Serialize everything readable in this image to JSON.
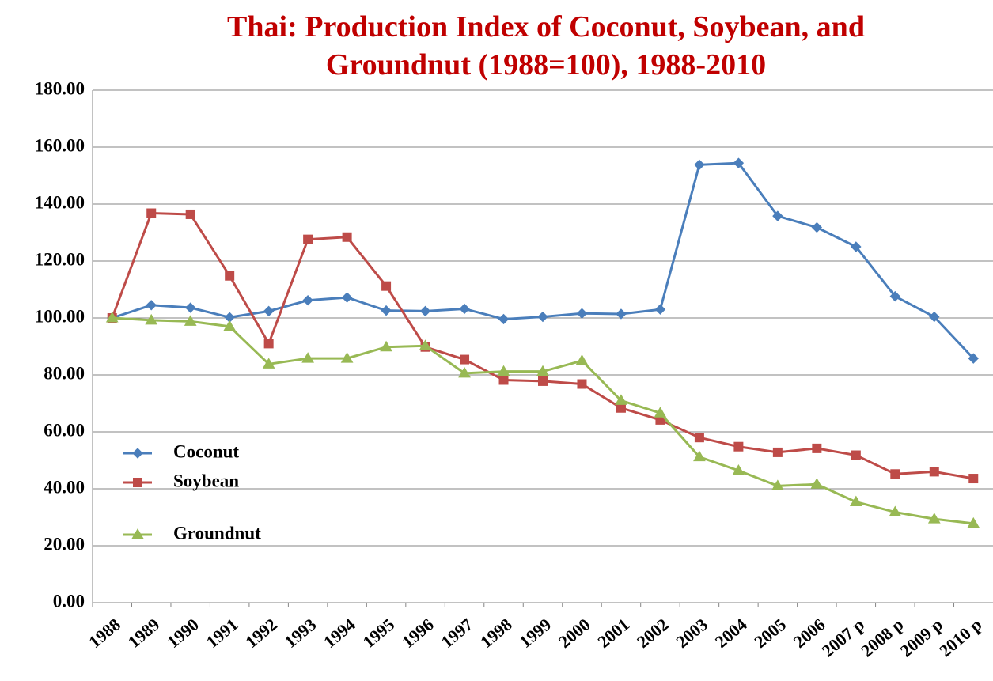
{
  "chart_data": {
    "type": "line",
    "title": [
      "Thai: Production Index of Coconut, Soybean, and",
      "Groundnut (1988=100), 1988-2010"
    ],
    "categories": [
      "1988",
      "1989",
      "1990",
      "1991",
      "1992",
      "1993",
      "1994",
      "1995",
      "1996",
      "1997",
      "1998",
      "1999",
      "2000",
      "2001",
      "2002",
      "2003",
      "2004",
      "2005",
      "2006",
      "2007 p",
      "2008 p",
      "2009 p",
      "2010 p"
    ],
    "series": [
      {
        "name": "Coconut",
        "color": "#4a7ebb",
        "marker": "diamond",
        "values": [
          100,
          104.5,
          103.6,
          100.2,
          102.4,
          106.2,
          107.2,
          102.6,
          102.4,
          103.2,
          99.6,
          100.4,
          101.6,
          101.4,
          103,
          153.8,
          154.4,
          135.8,
          131.8,
          125,
          107.6,
          100.4,
          85.8
        ]
      },
      {
        "name": "Soybean",
        "color": "#be4b48",
        "marker": "square",
        "values": [
          100,
          136.8,
          136.4,
          114.8,
          91,
          127.6,
          128.4,
          111.2,
          89.8,
          85.4,
          78.2,
          77.8,
          76.8,
          68.4,
          64.2,
          58,
          54.8,
          52.8,
          54.2,
          51.8,
          45.2,
          46,
          43.6
        ]
      },
      {
        "name": "Groundnut",
        "color": "#98b954",
        "marker": "triangle",
        "values": [
          100,
          99.2,
          98.8,
          97,
          83.8,
          85.8,
          85.8,
          89.8,
          90.2,
          80.6,
          81.2,
          81.2,
          85,
          71,
          66.6,
          51.2,
          46.4,
          41,
          41.6,
          35.4,
          31.8,
          29.4,
          27.8
        ]
      }
    ],
    "ylim": [
      0,
      180
    ],
    "yticks": [
      {
        "value": 0,
        "label": "0.00"
      },
      {
        "value": 20,
        "label": "20.00"
      },
      {
        "value": 40,
        "label": "40.00"
      },
      {
        "value": 60,
        "label": "60.00"
      },
      {
        "value": 80,
        "label": "80.00"
      },
      {
        "value": 100,
        "label": "100.00"
      },
      {
        "value": 120,
        "label": "120.00"
      },
      {
        "value": 140,
        "label": "140.00"
      },
      {
        "value": 160,
        "label": "160.00"
      },
      {
        "value": 180,
        "label": "180.00"
      }
    ],
    "grid": true,
    "legend": "left"
  }
}
